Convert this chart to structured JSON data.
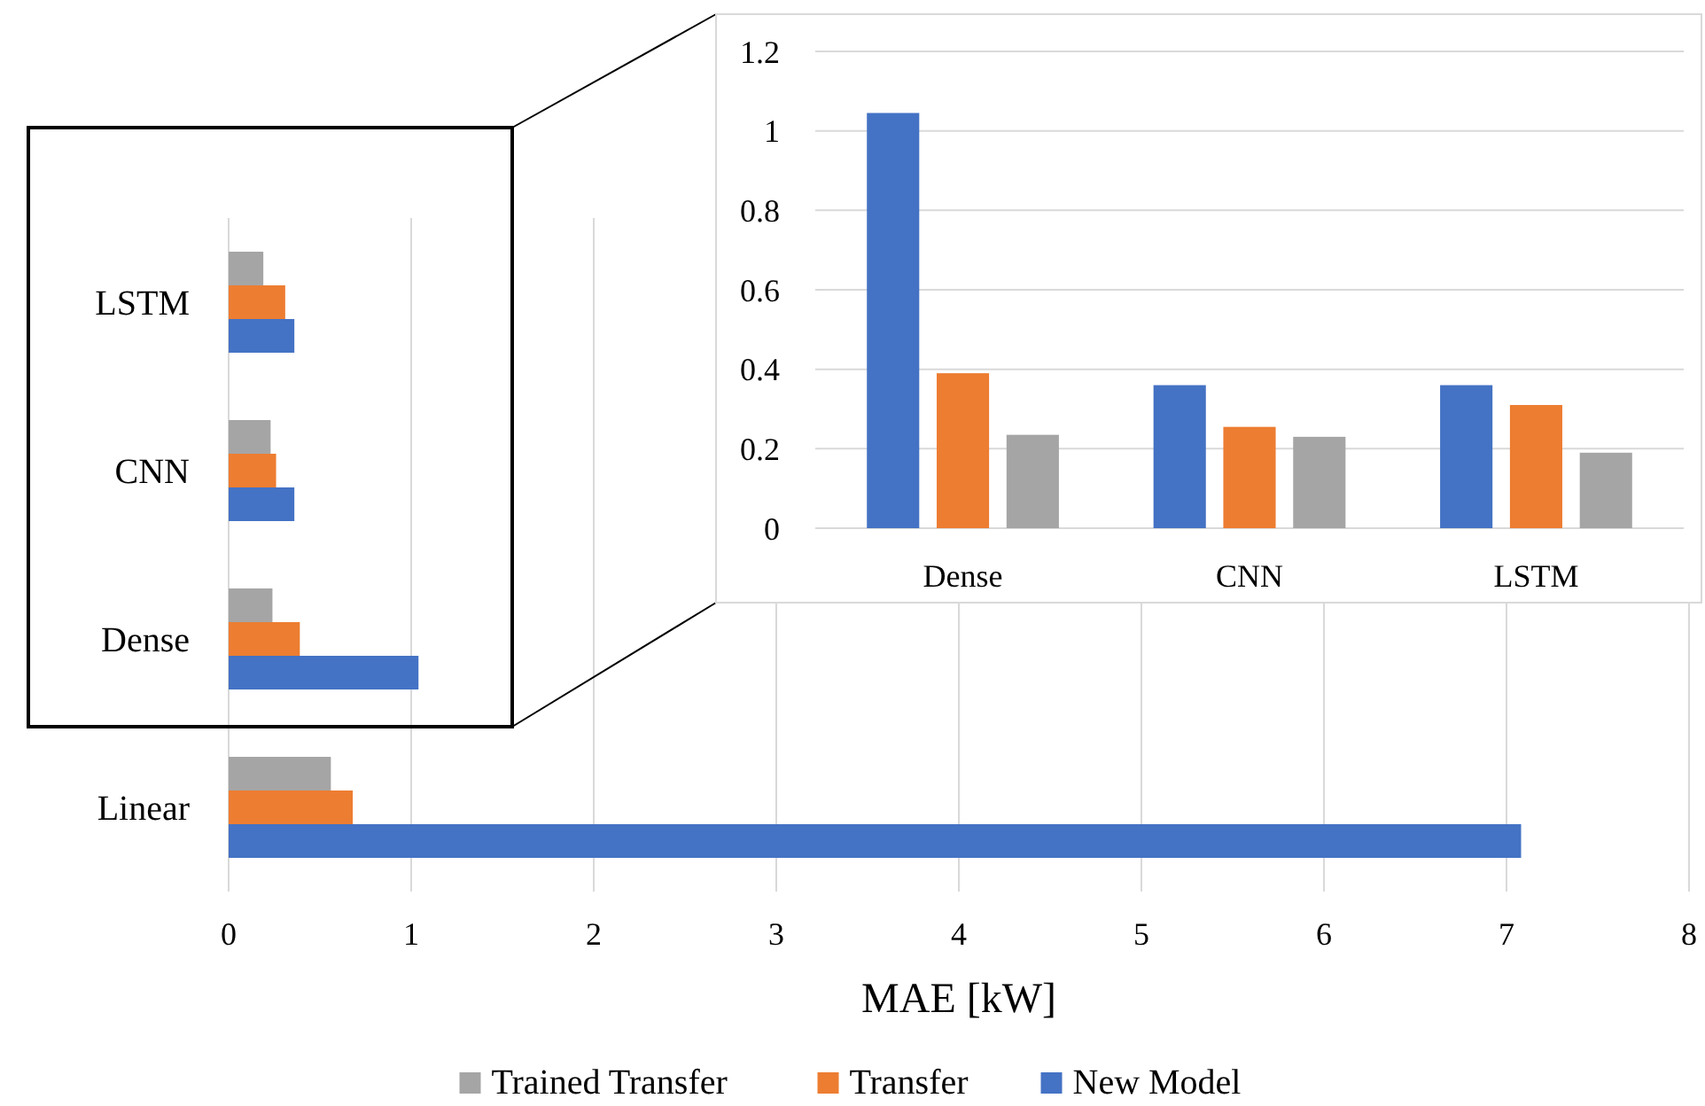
{
  "chart_data": [
    {
      "type": "bar",
      "orientation": "horizontal",
      "categories": [
        "LSTM",
        "CNN",
        "Dense",
        "Linear"
      ],
      "xlabel": "MAE [kW]",
      "xlim": [
        0,
        8
      ],
      "xticks": [
        0,
        1,
        2,
        3,
        4,
        5,
        6,
        7,
        8
      ],
      "grid": "x",
      "legend": "bottom",
      "series": [
        {
          "name": "Trained Transfer",
          "color": "#a5a5a5",
          "values": [
            0.19,
            0.23,
            0.24,
            0.56
          ]
        },
        {
          "name": "Transfer",
          "color": "#ed7d31",
          "values": [
            0.31,
            0.26,
            0.39,
            0.68
          ]
        },
        {
          "name": "New Model",
          "color": "#4472c4",
          "values": [
            0.36,
            0.36,
            1.04,
            7.08
          ]
        }
      ]
    },
    {
      "type": "bar",
      "categories": [
        "Dense",
        "CNN",
        "LSTM"
      ],
      "ylim": [
        0,
        1.2
      ],
      "yticks": [
        0,
        0.2,
        0.4,
        0.6,
        0.8,
        1,
        1.2
      ],
      "grid": "y",
      "series": [
        {
          "color": "#4472c4",
          "values": [
            1.045,
            0.36,
            0.36
          ]
        },
        {
          "color": "#ed7d31",
          "values": [
            0.39,
            0.255,
            0.31
          ]
        },
        {
          "color": "#a5a5a5",
          "values": [
            0.235,
            0.23,
            0.19
          ]
        }
      ]
    }
  ]
}
